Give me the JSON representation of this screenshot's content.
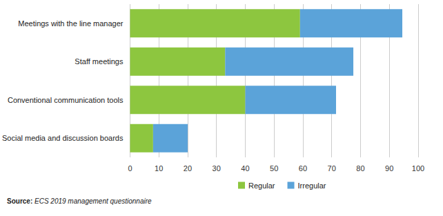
{
  "chart_data": {
    "type": "bar",
    "orientation": "horizontal",
    "stacked": true,
    "grid": true,
    "legend": "bottom",
    "categories": [
      "Meetings with the line manager",
      "Staff meetings",
      "Conventional communication tools",
      "Social media and discussion boards"
    ],
    "series": [
      {
        "name": "Regular",
        "color": "#8dc63f",
        "values": [
          59,
          33,
          40,
          8
        ]
      },
      {
        "name": "Irregular",
        "color": "#5ba3d9",
        "values": [
          35.5,
          44.5,
          31.5,
          12
        ]
      }
    ],
    "xlim": [
      0,
      100
    ],
    "xticks": [
      0,
      10,
      20,
      30,
      40,
      50,
      60,
      70,
      80,
      90,
      100
    ],
    "source": "Source: ECS 2019 management questionnaire"
  }
}
